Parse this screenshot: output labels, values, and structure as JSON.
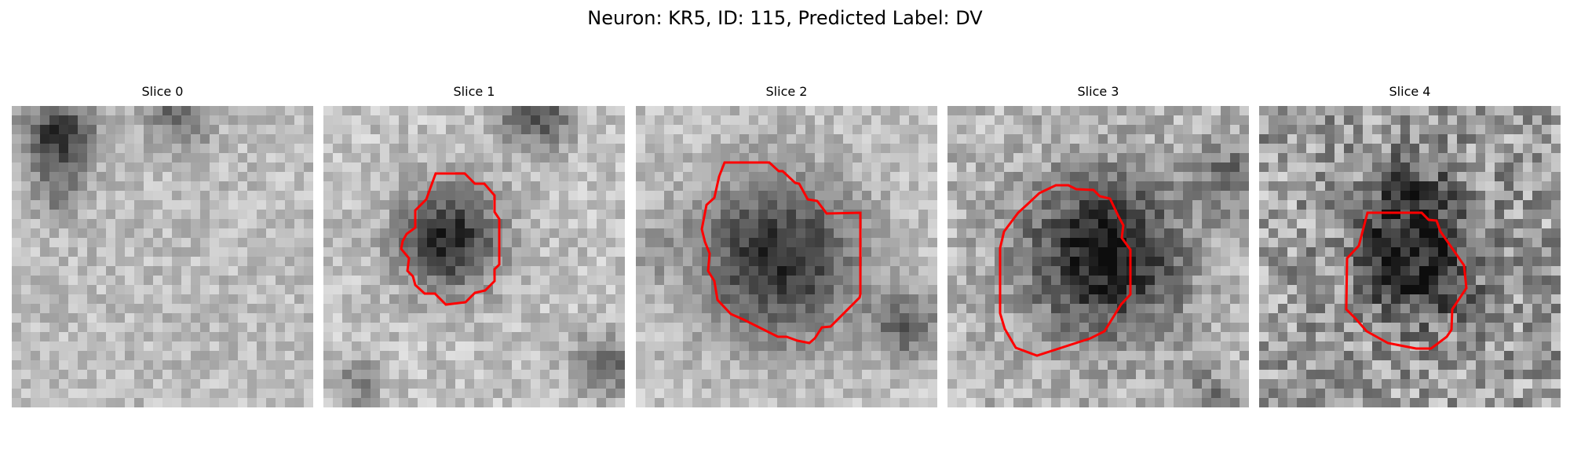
{
  "figure": {
    "title": "Neuron: KR5, ID: 115, Predicted Label: DV"
  },
  "panels": [
    {
      "title": "Slice 0",
      "has_contour": false,
      "noise_seed": 11
    },
    {
      "title": "Slice 1",
      "has_contour": true,
      "noise_seed": 23
    },
    {
      "title": "Slice 2",
      "has_contour": true,
      "noise_seed": 37
    },
    {
      "title": "Slice 3",
      "has_contour": true,
      "noise_seed": 51
    },
    {
      "title": "Slice 4",
      "has_contour": true,
      "noise_seed": 67
    }
  ],
  "colors": {
    "background": "#ffffff",
    "contour": "#ff0000",
    "colormap": "gray"
  }
}
